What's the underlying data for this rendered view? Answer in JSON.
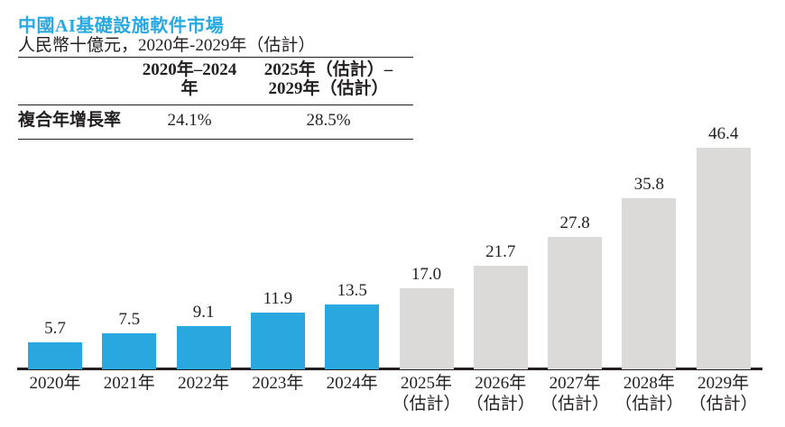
{
  "page": {
    "title": "中國AI基礎設施軟件市場",
    "subtitle": "人民幣十億元，2020年-2029年（估計）"
  },
  "cagr_table": {
    "period1_header": "2020年–2024年",
    "period2_header_line1": "2025年（估計）–",
    "period2_header_line2": "2029年（估計）",
    "metric_label": "複合年增長率",
    "period1_value": "24.1%",
    "period2_value": "28.5%"
  },
  "colors": {
    "title_blue": "#29A9E1",
    "bar_blue": "#29A8E0",
    "bar_gray": "#DBDAD8",
    "text_dark": "#231F20"
  },
  "chart_data": {
    "type": "bar",
    "title": "中國AI基礎設施軟件市場",
    "ylabel": "人民幣十億元",
    "categories": [
      "2020年",
      "2021年",
      "2022年",
      "2023年",
      "2024年",
      "2025年",
      "2026年",
      "2027年",
      "2028年",
      "2029年"
    ],
    "category_sublabels": [
      "",
      "",
      "",
      "",
      "",
      "（估計）",
      "（估計）",
      "（估計）",
      "（估計）",
      "（估計）"
    ],
    "values": [
      5.7,
      7.5,
      9.1,
      11.9,
      13.5,
      17.0,
      21.7,
      27.8,
      35.8,
      46.4
    ],
    "value_labels": [
      "5.7",
      "7.5",
      "9.1",
      "11.9",
      "13.5",
      "17.0",
      "21.7",
      "27.8",
      "35.8",
      "46.4"
    ],
    "bar_colors": [
      "#29A8E0",
      "#29A8E0",
      "#29A8E0",
      "#29A8E0",
      "#29A8E0",
      "#DBDAD8",
      "#DBDAD8",
      "#DBDAD8",
      "#DBDAD8",
      "#DBDAD8"
    ],
    "ylim": [
      0,
      50
    ],
    "grid": false,
    "legend": false,
    "value_labels_shown": true,
    "cagr_2020_2024": "24.1%",
    "cagr_2025_2029": "28.5%"
  }
}
